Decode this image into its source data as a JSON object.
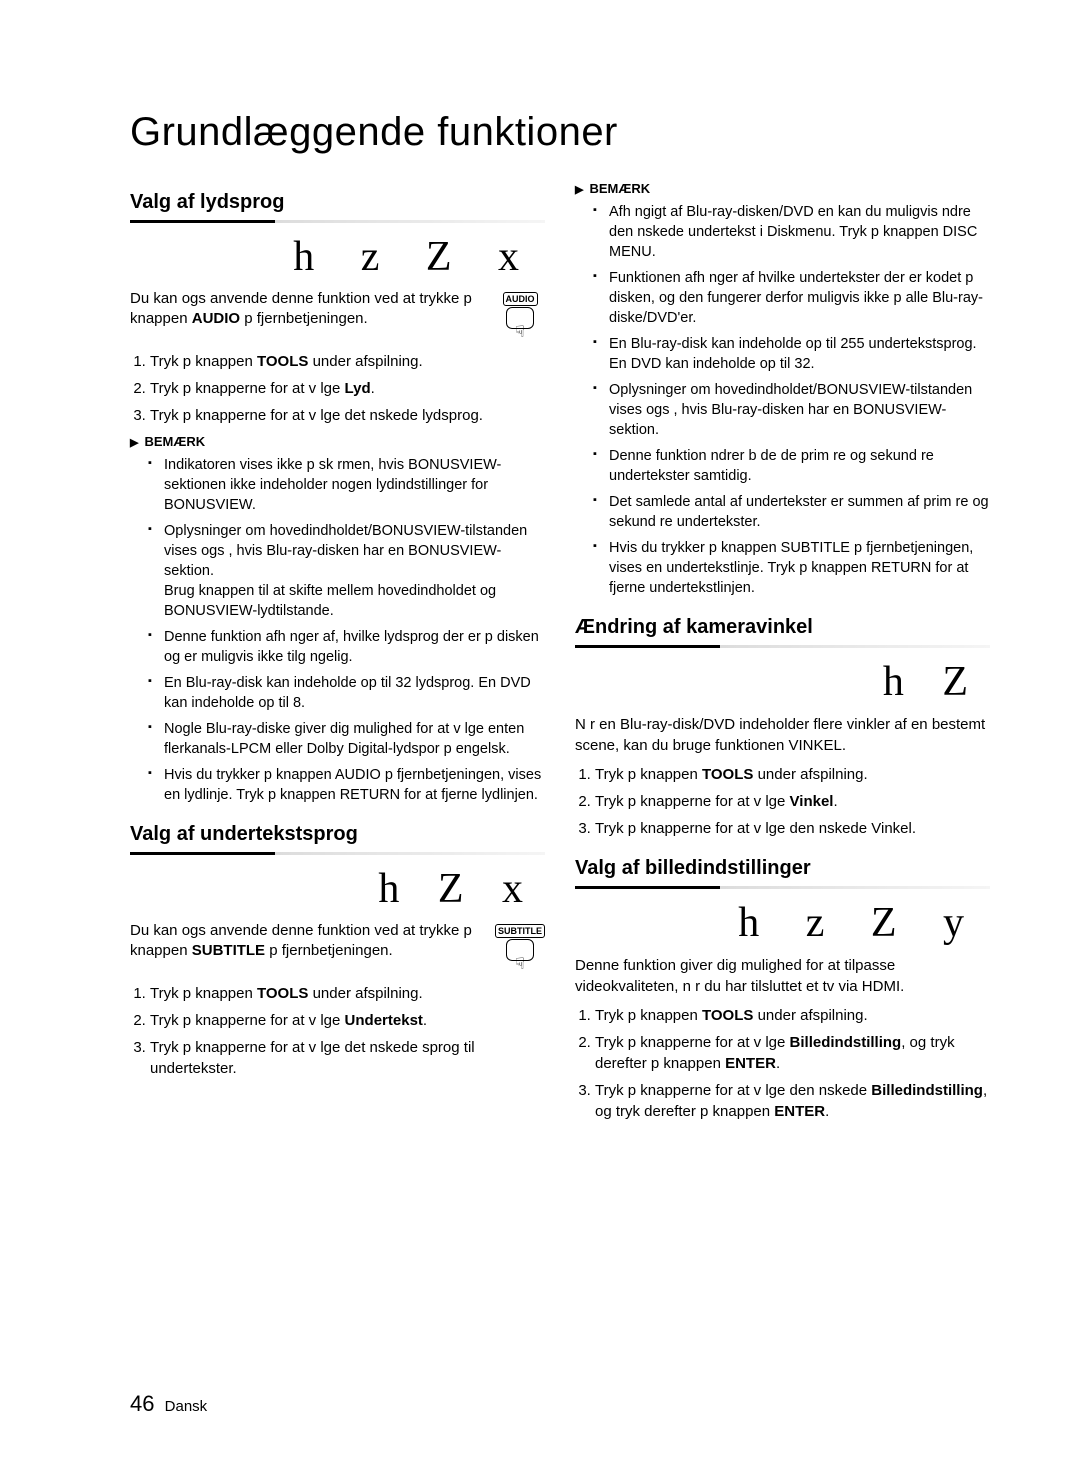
{
  "page_title": "Grundlæggende funktioner",
  "page_number": "46",
  "page_lang": "Dansk",
  "col_left": {
    "sec1": {
      "heading": "Valg af lydsprog",
      "icons": "h z Z x",
      "remote_label": "AUDIO",
      "intro_a": "Du kan ogs  anvende denne funktion ved at trykke p  knappen ",
      "intro_b": "AUDIO",
      "intro_c": " p  fjernbetjeningen.",
      "steps": {
        "s1a": "Tryk p  knappen ",
        "s1b": "TOOLS",
        "s1c": " under afspilning.",
        "s2a": "Tryk p  knapperne    for at v lge ",
        "s2b": "Lyd",
        "s2c": ".",
        "s3": "Tryk p  knapperne    for at v lge det  nskede lydsprog."
      },
      "note_label": "BEMÆRK",
      "notes": {
        "n1": "Indikatoren   vises ikke p  sk rmen, hvis BONUSVIEW-sektionen ikke indeholder nogen lydindstillinger for BONUSVIEW.",
        "n2": "Oplysninger om hovedindholdet/BONUSVIEW-tilstanden vises ogs , hvis Blu-ray-disken har en BONUSVIEW-sektion.\nBrug knappen   til at skifte mellem hovedindholdet og BONUSVIEW-lydtilstande.",
        "n3": "Denne funktion afh nger af, hvilke lydsprog der er p  disken og er muligvis ikke tilg ngelig.",
        "n4": "En Blu-ray-disk kan indeholde op til 32 lydsprog. En DVD kan indeholde op til 8.",
        "n5": "Nogle Blu-ray-diske giver dig mulighed for at v lge enten flerkanals-LPCM eller Dolby Digital-lydspor p  engelsk.",
        "n6": "Hvis du trykker p  knappen AUDIO p  fjernbetjeningen, vises en lydlinje. Tryk p  knappen RETURN for at fjerne lydlinjen."
      }
    },
    "sec2": {
      "heading": "Valg af undertekstsprog",
      "icons": "h Z x",
      "remote_label": "SUBTITLE",
      "intro_a": "Du kan ogs  anvende denne funktion ved at trykke p  knappen ",
      "intro_b": "SUBTITLE",
      "intro_c": " p  fjernbetjeningen.",
      "steps": {
        "s1a": "Tryk p  knappen ",
        "s1b": "TOOLS",
        "s1c": " under afspilning.",
        "s2a": "Tryk p  knapperne    for at v lge ",
        "s2b": "Undertekst",
        "s2c": ".",
        "s3": "Tryk p  knapperne    for at v lge det  nskede sprog til undertekster."
      }
    }
  },
  "col_right": {
    "note_label": "BEMÆRK",
    "notes_top": {
      "n1": "Afh ngigt af Blu-ray-disken/DVD en kan du muligvis  ndre den  nskede undertekst i Diskmenu. Tryk p  knappen DISC MENU.",
      "n2": "Funktionen afh nger af hvilke undertekster der er kodet p  disken, og den fungerer derfor muligvis ikke p  alle Blu-ray-diske/DVD'er.",
      "n3": "En Blu-ray-disk kan indeholde op til 255 undertekstsprog. En DVD kan indeholde op til 32.",
      "n4": "Oplysninger om hovedindholdet/BONUSVIEW-tilstanden vises ogs , hvis Blu-ray-disken har en BONUSVIEW-sektion.",
      "n5": "Denne funktion  ndrer b de de prim re og sekund re undertekster samtidig.",
      "n6": "Det samlede antal af undertekster er summen af prim re og sekund re undertekster.",
      "n7": "Hvis du trykker p  knappen SUBTITLE p  fjernbetjeningen, vises en undertekstlinje. Tryk p  knappen RETURN for at fjerne undertekstlinjen."
    },
    "sec2": {
      "heading": "Ændring af kameravinkel",
      "icons": "h Z",
      "intro": "N r en Blu-ray-disk/DVD indeholder flere vinkler af en bestemt scene, kan du bruge funktionen VINKEL.",
      "steps": {
        "s1a": "Tryk p  knappen ",
        "s1b": "TOOLS",
        "s1c": " under afspilning.",
        "s2a": "Tryk p  knapperne    for at v lge ",
        "s2b": "Vinkel",
        "s2c": ".",
        "s3": "Tryk p  knapperne    for at v lge den  nskede Vinkel."
      }
    },
    "sec3": {
      "heading": "Valg af billedindstillinger",
      "icons": "h z Z y",
      "intro": "Denne funktion giver dig mulighed for at tilpasse videokvaliteten, n r du har tilsluttet et tv via HDMI.",
      "steps": {
        "s1a": "Tryk p  knappen ",
        "s1b": "TOOLS",
        "s1c": " under afspilning.",
        "s2a": "Tryk p  knapperne    for at v lge ",
        "s2b": "Billedindstilling",
        "s2c": ", og tryk derefter p  knappen ",
        "s2d": "ENTER",
        "s2e": ".",
        "s3a": "Tryk p  knapperne    for at v lge den  nskede ",
        "s3b": "Billedindstilling",
        "s3c": ", og tryk derefter p  knappen ",
        "s3d": "ENTER",
        "s3e": "."
      }
    }
  }
}
